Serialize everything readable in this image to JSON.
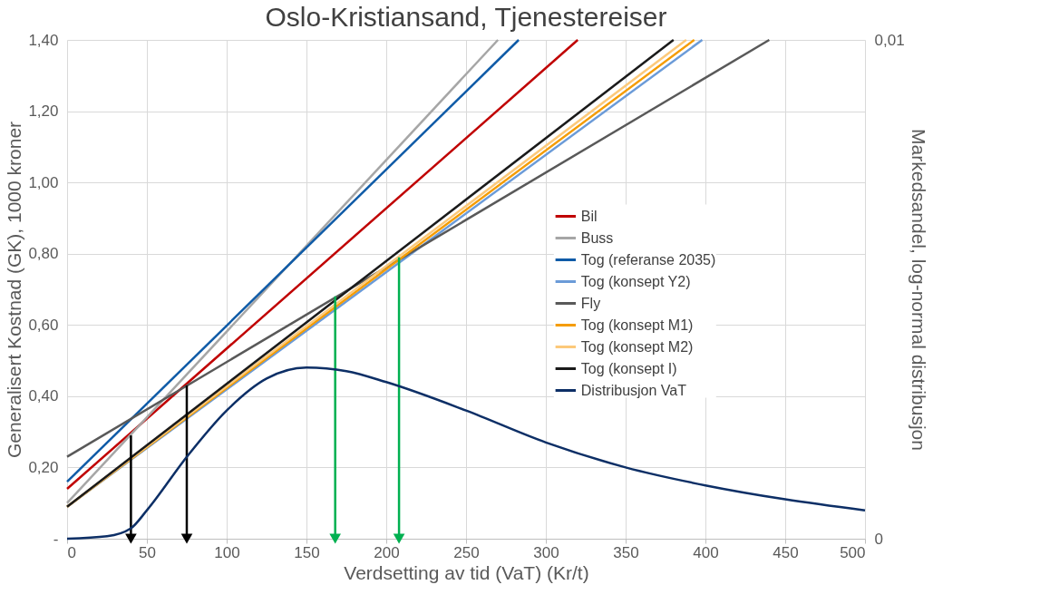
{
  "chart_data": {
    "type": "line",
    "title": "Oslo-Kristiansand, Tjenestereiser",
    "xlabel": "Verdsetting av tid (VaT) (Kr/t)",
    "ylabel": "Generalisert Kostnad (GK), 1000 kroner",
    "y2label": "Markedsandel, log-normal  distribusjon",
    "xlim": [
      0,
      500
    ],
    "xticks": [
      0,
      50,
      100,
      150,
      200,
      250,
      300,
      350,
      400,
      450,
      500
    ],
    "ylim": [
      0,
      1.4
    ],
    "yticks": [
      {
        "value": 0,
        "label": "-"
      },
      {
        "value": 0.2,
        "label": "0,20"
      },
      {
        "value": 0.4,
        "label": "0,40"
      },
      {
        "value": 0.6,
        "label": "0,60"
      },
      {
        "value": 0.8,
        "label": "0,80"
      },
      {
        "value": 1.0,
        "label": "1,00"
      },
      {
        "value": 1.2,
        "label": "1,20"
      },
      {
        "value": 1.4,
        "label": "1,40"
      }
    ],
    "y2lim": [
      0,
      0.01
    ],
    "y2ticks": [
      {
        "value": 0,
        "label": "0"
      },
      {
        "value": 0.01,
        "label": "0,01"
      }
    ],
    "grid": true,
    "legend": "right",
    "line_style": "solid",
    "marker": "none",
    "series": [
      {
        "name": "Bil",
        "color": "#c00000",
        "x": [
          0,
          320
        ],
        "values": [
          0.14,
          1.4
        ]
      },
      {
        "name": "Buss",
        "color": "#a6a6a6",
        "x": [
          0,
          270
        ],
        "values": [
          0.1,
          1.4
        ]
      },
      {
        "name": "Tog (referanse 2035)",
        "color": "#0f5ba7",
        "x": [
          0,
          283
        ],
        "values": [
          0.16,
          1.4
        ]
      },
      {
        "name": "Tog (konsept Y2)",
        "color": "#6b9bd8",
        "x": [
          0,
          398
        ],
        "values": [
          0.09,
          1.4
        ]
      },
      {
        "name": "Fly",
        "color": "#595959",
        "x": [
          0,
          440
        ],
        "values": [
          0.23,
          1.4
        ]
      },
      {
        "name": "Tog (konsept M1)",
        "color": "#f59c00",
        "x": [
          0,
          393
        ],
        "values": [
          0.09,
          1.4
        ]
      },
      {
        "name": "Tog (konsept M2)",
        "color": "#fcc97a",
        "x": [
          0,
          388
        ],
        "values": [
          0.09,
          1.4
        ]
      },
      {
        "name": "Tog (konsept I)",
        "color": "#1a1a1a",
        "x": [
          0,
          380
        ],
        "values": [
          0.09,
          1.4
        ]
      },
      {
        "name": "Distribusjon VaT",
        "color": "#0d2f66",
        "axis": "y2",
        "x": [
          0,
          25,
          40,
          50,
          75,
          100,
          125,
          150,
          175,
          200,
          250,
          300,
          350,
          400,
          450,
          500
        ],
        "values": [
          0,
          5e-05,
          0.00021,
          0.00057,
          0.00164,
          0.00257,
          0.00321,
          0.00343,
          0.00336,
          0.00314,
          0.00257,
          0.00193,
          0.00143,
          0.00107,
          0.00079,
          0.00057
        ]
      },
      {
        "color": "#000000",
        "marker": "triangle",
        "x": [
          40,
          40
        ],
        "values": [
          0.29,
          0.0
        ]
      },
      {
        "color": "#000000",
        "marker": "triangle",
        "x": [
          75,
          75
        ],
        "values": [
          0.43,
          0.0
        ]
      },
      {
        "color": "#00b050",
        "marker": "triangle",
        "x": [
          168,
          168
        ],
        "values": [
          0.68,
          0.0
        ]
      },
      {
        "color": "#00b050",
        "marker": "triangle",
        "x": [
          208,
          208
        ],
        "values": [
          0.79,
          0.0
        ]
      }
    ]
  }
}
